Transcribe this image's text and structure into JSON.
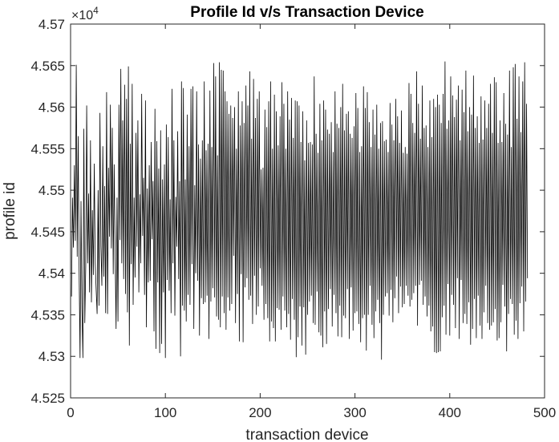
{
  "chart_data": {
    "type": "line",
    "title": "Profile Id v/s Transaction Device",
    "xlabel": "transaction device",
    "ylabel": "profile id",
    "xlim": [
      0,
      500
    ],
    "ylim": [
      45250,
      45700
    ],
    "xticks": [
      0,
      100,
      200,
      300,
      400,
      500
    ],
    "xtick_labels": [
      "0",
      "100",
      "200",
      "300",
      "400",
      "500"
    ],
    "yticks": [
      45250,
      45300,
      45350,
      45400,
      45450,
      45500,
      45550,
      45600,
      45650,
      45700
    ],
    "ytick_labels": [
      "4.525",
      "4.53",
      "4.535",
      "4.54",
      "4.545",
      "4.55",
      "4.555",
      "4.56",
      "4.565",
      "4.57"
    ],
    "y_multiplier": {
      "base": "×10",
      "exponent": "4"
    },
    "grid": false,
    "line_color": "#000000",
    "series": [
      {
        "x_start": 1,
        "x_step": 1,
        "values": [
          45372,
          45491,
          45431,
          45530,
          45439,
          45651,
          45420,
          45565,
          45405,
          45298,
          45487,
          45357,
          45298,
          45574,
          45340,
          45408,
          45602,
          45412,
          45496,
          45377,
          45560,
          45365,
          45476,
          45398,
          45532,
          45412,
          45380,
          45351,
          45500,
          45361,
          45593,
          45433,
          45385,
          45553,
          45396,
          45505,
          45352,
          45618,
          45351,
          45527,
          45444,
          45603,
          45430,
          45575,
          45399,
          45531,
          45424,
          45333,
          45491,
          45342,
          45603,
          45440,
          45646,
          45412,
          45584,
          45393,
          45627,
          45375,
          45610,
          45353,
          45649,
          45313,
          45556,
          45411,
          45628,
          45362,
          45491,
          45395,
          45569,
          45432,
          45584,
          45377,
          45495,
          45412,
          45616,
          45445,
          45515,
          45374,
          45608,
          45335,
          45502,
          45389,
          45530,
          45391,
          45558,
          45441,
          45511,
          45330,
          45598,
          45309,
          45559,
          45389,
          45526,
          45304,
          45572,
          45315,
          45513,
          45377,
          45531,
          45298,
          45579,
          45392,
          45564,
          45379,
          45489,
          45352,
          45622,
          45412,
          45560,
          45349,
          45492,
          45432,
          45571,
          45393,
          45511,
          45300,
          45631,
          45361,
          45623,
          45355,
          45513,
          45342,
          45591,
          45374,
          45553,
          45362,
          45622,
          45411,
          45625,
          45333,
          45506,
          45400,
          45619,
          45391,
          45555,
          45325,
          45538,
          45370,
          45560,
          45363,
          45631,
          45365,
          45548,
          45373,
          45556,
          45321,
          45620,
          45366,
          45552,
          45382,
          45653,
          45371,
          45637,
          45348,
          45542,
          45344,
          45654,
          45335,
          45645,
          45372,
          45644,
          45352,
          45619,
          45332,
          45607,
          45371,
          45592,
          45355,
          45602,
          45363,
          45587,
          45421,
          45600,
          45340,
          45550,
          45375,
          45619,
          45318,
          45578,
          45399,
          45607,
          45317,
          45581,
          45383,
          45626,
          45394,
          45602,
          45368,
          45643,
          45373,
          45562,
          45339,
          45634,
          45397,
          45587,
          45350,
          45610,
          45360,
          45619,
          45406,
          45525,
          45385,
          45527,
          45344,
          45597,
          45363,
          45576,
          45346,
          45607,
          45318,
          45631,
          45342,
          45550,
          45334,
          45615,
          45318,
          45595,
          45358,
          45554,
          45356,
          45589,
          45332,
          45630,
          45372,
          45604,
          45355,
          45550,
          45335,
          45619,
          45351,
          45585,
          45320,
          45611,
          45369,
          45563,
          45344,
          45608,
          45299,
          45607,
          45323,
          45602,
          45360,
          45558,
          45313,
          45595,
          45359,
          45536,
          45302,
          45584,
          45350,
          45557,
          45366,
          45558,
          45373,
          45555,
          45340,
          45637,
          45338,
          45568,
          45378,
          45545,
          45329,
          45604,
          45325,
          45560,
          45311,
          45608,
          45354,
          45597,
          45315,
          45573,
          45357,
          45568,
          45381,
          45582,
          45336,
          45546,
          45374,
          45619,
          45352,
          45580,
          45324,
          45575,
          45361,
          45600,
          45323,
          45628,
          45349,
          45572,
          45346,
          45592,
          45381,
          45595,
          45321,
          45568,
          45383,
          45563,
          45331,
          45577,
          45352,
          45617,
          45354,
          45599,
          45339,
          45546,
          45317,
          45553,
          45346,
          45625,
          45350,
          45599,
          45307,
          45618,
          45350,
          45582,
          45385,
          45552,
          45338,
          45597,
          45322,
          45567,
          45354,
          45603,
          45368,
          45550,
          45340,
          45581,
          45296,
          45583,
          45350,
          45559,
          45372,
          45561,
          45376,
          45546,
          45349,
          45605,
          45380,
          45579,
          45341,
          45560,
          45370,
          45610,
          45396,
          45589,
          45352,
          45557,
          45384,
          45596,
          45359,
          45545,
          45363,
          45552,
          45385,
          45544,
          45373,
          45629,
          45360,
          45616,
          45368,
          45581,
          45376,
          45569,
          45385,
          45643,
          45337,
          45604,
          45386,
          45562,
          45391,
          45626,
          45362,
          45575,
          45372,
          45578,
          45348,
          45552,
          45361,
          45608,
          45330,
          45564,
          45336,
          45610,
          45305,
          45600,
          45304,
          45615,
          45305,
          45603,
          45306,
          45581,
          45347,
          45616,
          45361,
          45655,
          45326,
          45574,
          45387,
          45584,
          45325,
          45637,
          45374,
          45614,
          45362,
          45588,
          45334,
          45609,
          45394,
          45626,
          45321,
          45560,
          45392,
          45621,
          45340,
          45594,
          45351,
          45644,
          45339,
          45571,
          45365,
          45600,
          45314,
          45591,
          45333,
          45638,
          45369,
          45575,
          45322,
          45589,
          45373,
          45557,
          45337,
          45613,
          45321,
          45561,
          45353,
          45608,
          45385,
          45575,
          45340,
          45604,
          45332,
          45628,
          45337,
          45569,
          45341,
          45636,
          45357,
          45630,
          45319,
          45557,
          45322,
          45584,
          45341,
          45558,
          45386,
          45617,
          45360,
          45580,
          45306,
          45567,
          45351,
          45644,
          45369,
          45552,
          45363,
          45648,
          45326,
          45652,
          45343,
          45586,
          45321,
          45637,
          45364,
          45570,
          45384,
          45631,
          45330,
          45654,
          45366,
          45604,
          45394
        ]
      }
    ]
  }
}
